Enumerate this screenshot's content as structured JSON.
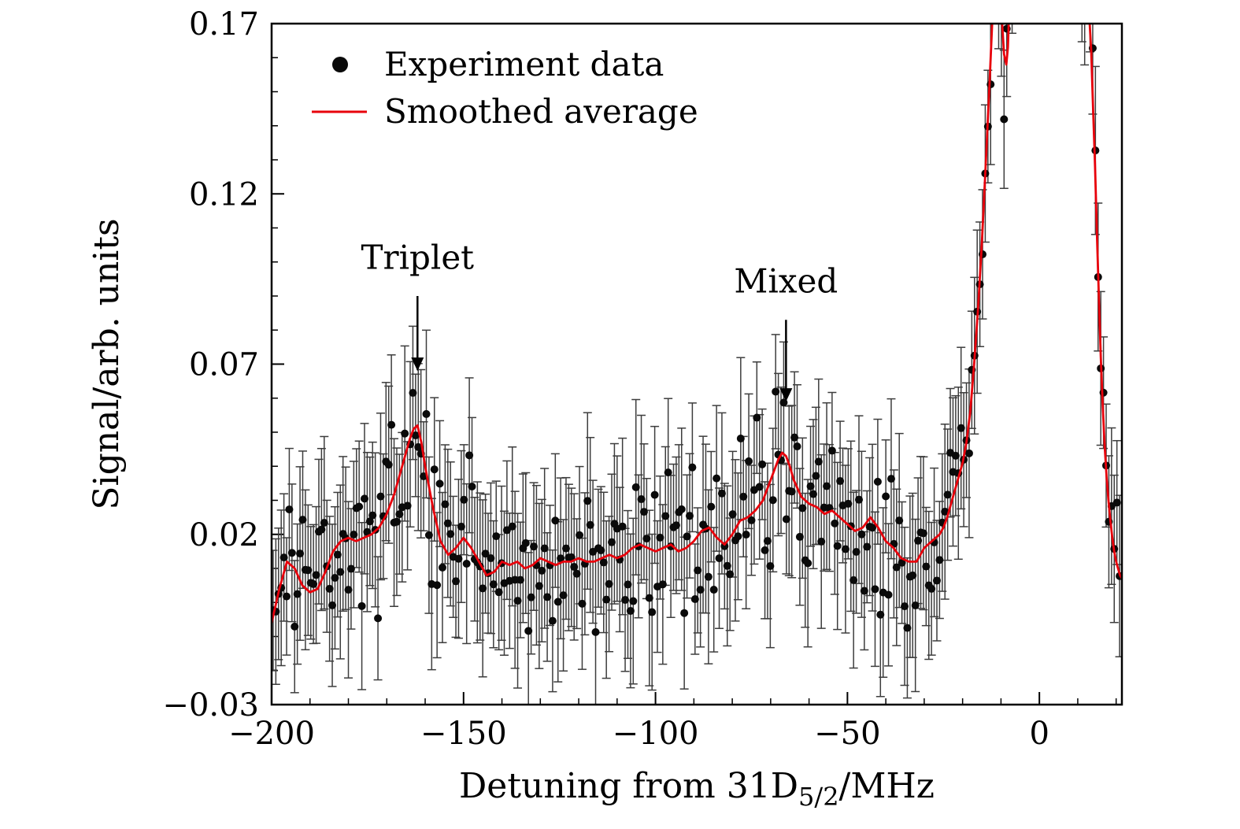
{
  "figure": {
    "background": "#ffffff",
    "frame_color": "#000000",
    "error_bar_color": "#3d3d3d",
    "marker_color": "#0a0a0a",
    "line_color": "#e8000b"
  },
  "chart_data": {
    "type": "scatter",
    "title": "",
    "ylabel": "Signal/arb. units",
    "xlabel_parts": {
      "prefix": "Detuning from 31D",
      "subscript": "5/2",
      "suffix": "/MHz"
    },
    "xlim": [
      -200,
      21.5
    ],
    "ylim": [
      -0.03,
      0.17
    ],
    "x_major_ticks": [
      -200,
      -150,
      -100,
      -50,
      0
    ],
    "x_tick_labels": [
      "−200",
      "−150",
      "−100",
      "−50",
      "0"
    ],
    "x_minor_step": 10,
    "y_major_ticks": [
      -0.03,
      0.02,
      0.07,
      0.12,
      0.17
    ],
    "y_tick_labels": [
      "−0.03",
      "0.02",
      "0.07",
      "0.12",
      "0.17"
    ],
    "y_minor_step": 0.01,
    "legend": {
      "position": "top-left",
      "items": [
        {
          "label": "Experiment data",
          "type": "marker",
          "color": "#0a0a0a"
        },
        {
          "label": "Smoothed average",
          "type": "line",
          "color": "#e8000b"
        }
      ]
    },
    "annotations": [
      {
        "label": "Triplet",
        "x": -162,
        "label_y": 0.098,
        "arrow_from_y": 0.09,
        "arrow_tip_y": 0.068
      },
      {
        "label": "Mixed",
        "x": -66,
        "label_y": 0.091,
        "arrow_from_y": 0.083,
        "arrow_tip_y": 0.059
      }
    ],
    "smoothed_series": {
      "name": "Smoothed average",
      "color": "#e8000b",
      "points": [
        [
          -200,
          -0.006
        ],
        [
          -198,
          0.004
        ],
        [
          -196,
          0.012
        ],
        [
          -194,
          0.01
        ],
        [
          -192,
          0.005
        ],
        [
          -190,
          0.003
        ],
        [
          -188,
          0.004
        ],
        [
          -186,
          0.009
        ],
        [
          -184,
          0.015
        ],
        [
          -182,
          0.018
        ],
        [
          -180,
          0.019
        ],
        [
          -178,
          0.018
        ],
        [
          -176,
          0.019
        ],
        [
          -174,
          0.02
        ],
        [
          -172,
          0.022
        ],
        [
          -170,
          0.026
        ],
        [
          -168,
          0.032
        ],
        [
          -166,
          0.04
        ],
        [
          -164,
          0.048
        ],
        [
          -163,
          0.051
        ],
        [
          -162,
          0.052
        ],
        [
          -161,
          0.047
        ],
        [
          -160,
          0.04
        ],
        [
          -159,
          0.034
        ],
        [
          -158,
          0.028
        ],
        [
          -156,
          0.018
        ],
        [
          -154,
          0.014
        ],
        [
          -152,
          0.016
        ],
        [
          -150,
          0.019
        ],
        [
          -148,
          0.016
        ],
        [
          -146,
          0.012
        ],
        [
          -144,
          0.008
        ],
        [
          -142,
          0.009
        ],
        [
          -140,
          0.012
        ],
        [
          -138,
          0.011
        ],
        [
          -136,
          0.012
        ],
        [
          -134,
          0.01
        ],
        [
          -132,
          0.011
        ],
        [
          -130,
          0.013
        ],
        [
          -128,
          0.012
        ],
        [
          -126,
          0.011
        ],
        [
          -124,
          0.012
        ],
        [
          -122,
          0.012
        ],
        [
          -120,
          0.013
        ],
        [
          -118,
          0.012
        ],
        [
          -116,
          0.012
        ],
        [
          -114,
          0.013
        ],
        [
          -112,
          0.014
        ],
        [
          -110,
          0.013
        ],
        [
          -108,
          0.014
        ],
        [
          -106,
          0.016
        ],
        [
          -104,
          0.017
        ],
        [
          -102,
          0.016
        ],
        [
          -100,
          0.015
        ],
        [
          -98,
          0.016
        ],
        [
          -96,
          0.017
        ],
        [
          -94,
          0.015
        ],
        [
          -92,
          0.016
        ],
        [
          -90,
          0.018
        ],
        [
          -88,
          0.021
        ],
        [
          -86,
          0.022
        ],
        [
          -84,
          0.019
        ],
        [
          -82,
          0.017
        ],
        [
          -80,
          0.02
        ],
        [
          -78,
          0.024
        ],
        [
          -76,
          0.025
        ],
        [
          -74,
          0.027
        ],
        [
          -72,
          0.03
        ],
        [
          -70,
          0.036
        ],
        [
          -68,
          0.042
        ],
        [
          -67,
          0.044
        ],
        [
          -66,
          0.043
        ],
        [
          -65,
          0.04
        ],
        [
          -64,
          0.036
        ],
        [
          -62,
          0.031
        ],
        [
          -60,
          0.029
        ],
        [
          -58,
          0.028
        ],
        [
          -56,
          0.026
        ],
        [
          -54,
          0.027
        ],
        [
          -52,
          0.025
        ],
        [
          -50,
          0.023
        ],
        [
          -48,
          0.021
        ],
        [
          -46,
          0.022
        ],
        [
          -44,
          0.025
        ],
        [
          -42,
          0.022
        ],
        [
          -40,
          0.018
        ],
        [
          -38,
          0.016
        ],
        [
          -36,
          0.013
        ],
        [
          -34,
          0.012
        ],
        [
          -32,
          0.012
        ],
        [
          -30,
          0.016
        ],
        [
          -28,
          0.018
        ],
        [
          -26,
          0.02
        ],
        [
          -25,
          0.022
        ],
        [
          -24,
          0.025
        ],
        [
          -23,
          0.029
        ],
        [
          -22,
          0.033
        ],
        [
          -21,
          0.037
        ],
        [
          -20,
          0.041
        ],
        [
          -19,
          0.047
        ],
        [
          -18,
          0.056
        ],
        [
          -17,
          0.07
        ],
        [
          -16,
          0.086
        ],
        [
          -15,
          0.105
        ],
        [
          -14,
          0.128
        ],
        [
          -13,
          0.152
        ],
        [
          -12,
          0.178
        ],
        [
          -11.5,
          0.192
        ],
        [
          -11,
          0.205
        ],
        [
          -10.5,
          0.19
        ],
        [
          -9.8,
          0.172
        ],
        [
          -9.2,
          0.161
        ],
        [
          -8.6,
          0.158
        ],
        [
          -8.2,
          0.163
        ],
        [
          -7.8,
          0.176
        ],
        [
          -7.2,
          0.2
        ],
        [
          -6,
          0.26
        ],
        [
          -4,
          0.38
        ],
        [
          -2,
          0.48
        ],
        [
          0,
          0.54
        ],
        [
          2,
          0.52
        ],
        [
          4,
          0.46
        ],
        [
          6,
          0.38
        ],
        [
          8,
          0.3
        ],
        [
          10,
          0.235
        ],
        [
          11,
          0.205
        ],
        [
          12,
          0.185
        ],
        [
          13,
          0.172
        ],
        [
          13.5,
          0.162
        ],
        [
          14,
          0.145
        ],
        [
          14.5,
          0.128
        ],
        [
          15,
          0.108
        ],
        [
          15.5,
          0.09
        ],
        [
          16,
          0.072
        ],
        [
          16.5,
          0.058
        ],
        [
          17,
          0.046
        ],
        [
          17.5,
          0.037
        ],
        [
          18,
          0.03
        ],
        [
          18.5,
          0.024
        ],
        [
          19,
          0.019
        ],
        [
          19.5,
          0.015
        ],
        [
          20,
          0.012
        ],
        [
          20.5,
          0.01
        ],
        [
          21,
          0.008
        ],
        [
          21.5,
          0.007
        ]
      ]
    },
    "experiment_series": {
      "name": "Experiment data",
      "color": "#0a0a0a",
      "marker_radius_px": 5,
      "x_start": -199.6,
      "x_end": 21.4,
      "x_step": 0.7,
      "noise_sigma": 0.011,
      "error_bar_base": 0.016,
      "error_bar_var": 0.01,
      "seed": 1337
    }
  }
}
